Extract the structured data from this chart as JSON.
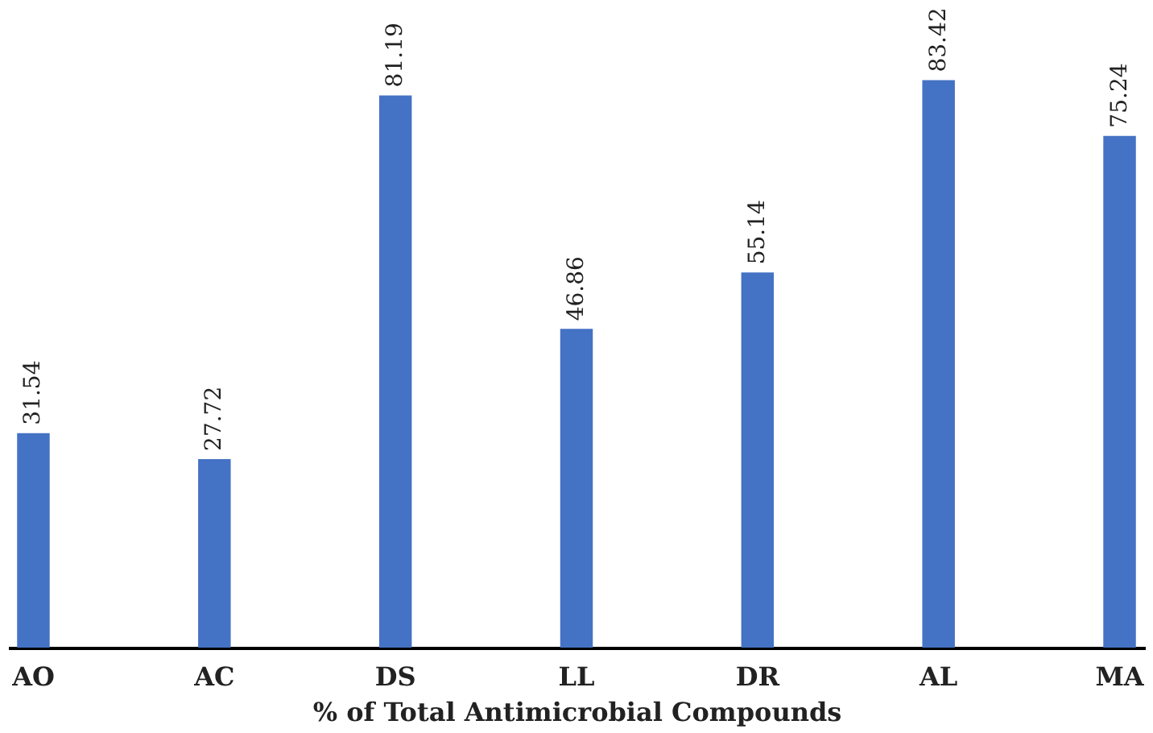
{
  "chart_data": {
    "type": "bar",
    "xlabel": "% of Total Antimicrobial Compounds",
    "categories": [
      "AO",
      "AC",
      "DS",
      "LL",
      "DR",
      "AL",
      "MA"
    ],
    "values": [
      31.54,
      27.72,
      81.19,
      46.86,
      55.14,
      83.42,
      75.24
    ],
    "color": "#4472c4",
    "data_labels": true
  }
}
